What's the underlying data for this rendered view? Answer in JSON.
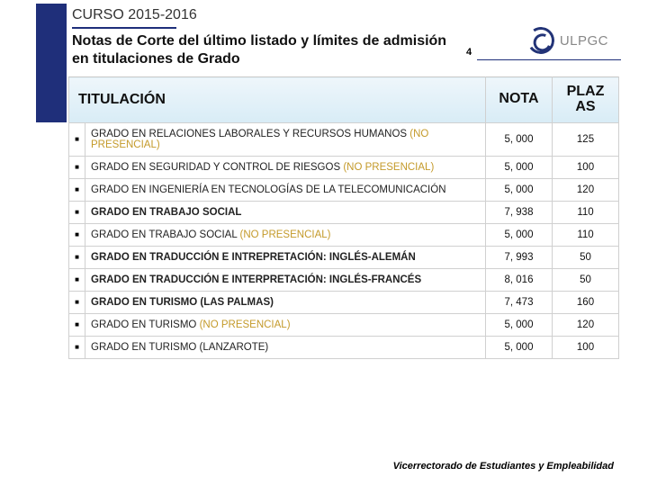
{
  "header": {
    "course": "CURSO 2015-2016",
    "subtitle": "Notas de Corte del último listado y límites de admisión en titulaciones de Grado",
    "page_number": "4",
    "logo_text": "ULPGC"
  },
  "table": {
    "columns": {
      "titulacion": "TITULACIÓN",
      "nota": "NOTA",
      "plazas": "PLAZAS"
    },
    "rows": [
      {
        "name": "GRADO EN RELACIONES LABORALES Y RECURSOS  HUMANOS ",
        "np": "(NO PRESENCIAL)",
        "bold": false,
        "nota": "5, 000",
        "plazas": "125"
      },
      {
        "name": "GRADO EN SEGURIDAD Y CONTROL DE RIESGOS ",
        "np": "(NO PRESENCIAL)",
        "bold": false,
        "nota": "5, 000",
        "plazas": "100"
      },
      {
        "name": "GRADO EN INGENIERÍA EN TECNOLOGÍAS DE LA TELECOMUNICACIÓN",
        "np": "",
        "bold": false,
        "nota": "5, 000",
        "plazas": "120"
      },
      {
        "name": "GRADO EN TRABAJO SOCIAL",
        "np": "",
        "bold": true,
        "nota": "7, 938",
        "plazas": "110"
      },
      {
        "name": "GRADO EN TRABAJO SOCIAL ",
        "np": "(NO PRESENCIAL)",
        "bold": false,
        "nota": "5, 000",
        "plazas": "110"
      },
      {
        "name": "GRADO EN TRADUCCIÓN E INTREPRETACIÓN: INGLÉS-ALEMÁN",
        "np": "",
        "bold": true,
        "nota": "7, 993",
        "plazas": "50"
      },
      {
        "name": "GRADO EN TRADUCCIÓN E INTERPRETACIÓN: INGLÉS-FRANCÉS",
        "np": "",
        "bold": true,
        "nota": "8, 016",
        "plazas": "50"
      },
      {
        "name": "GRADO EN TURISMO (LAS PALMAS)",
        "np": "",
        "bold": true,
        "nota": "7, 473",
        "plazas": "160"
      },
      {
        "name": "GRADO EN TURISMO ",
        "np": "(NO PRESENCIAL)",
        "bold": false,
        "nota": "5, 000",
        "plazas": "120"
      },
      {
        "name": "GRADO EN TURISMO (LANZAROTE)",
        "np": "",
        "bold": false,
        "nota": "5, 000",
        "plazas": "100"
      }
    ]
  },
  "footer": "Vicerrectorado de Estudiantes y Empleabilidad",
  "style": {
    "accent_blue": "#1f2f7a",
    "np_color": "#c49a2a",
    "header_gradient_top": "#eef6fb",
    "header_gradient_bottom": "#d8ecf6"
  }
}
